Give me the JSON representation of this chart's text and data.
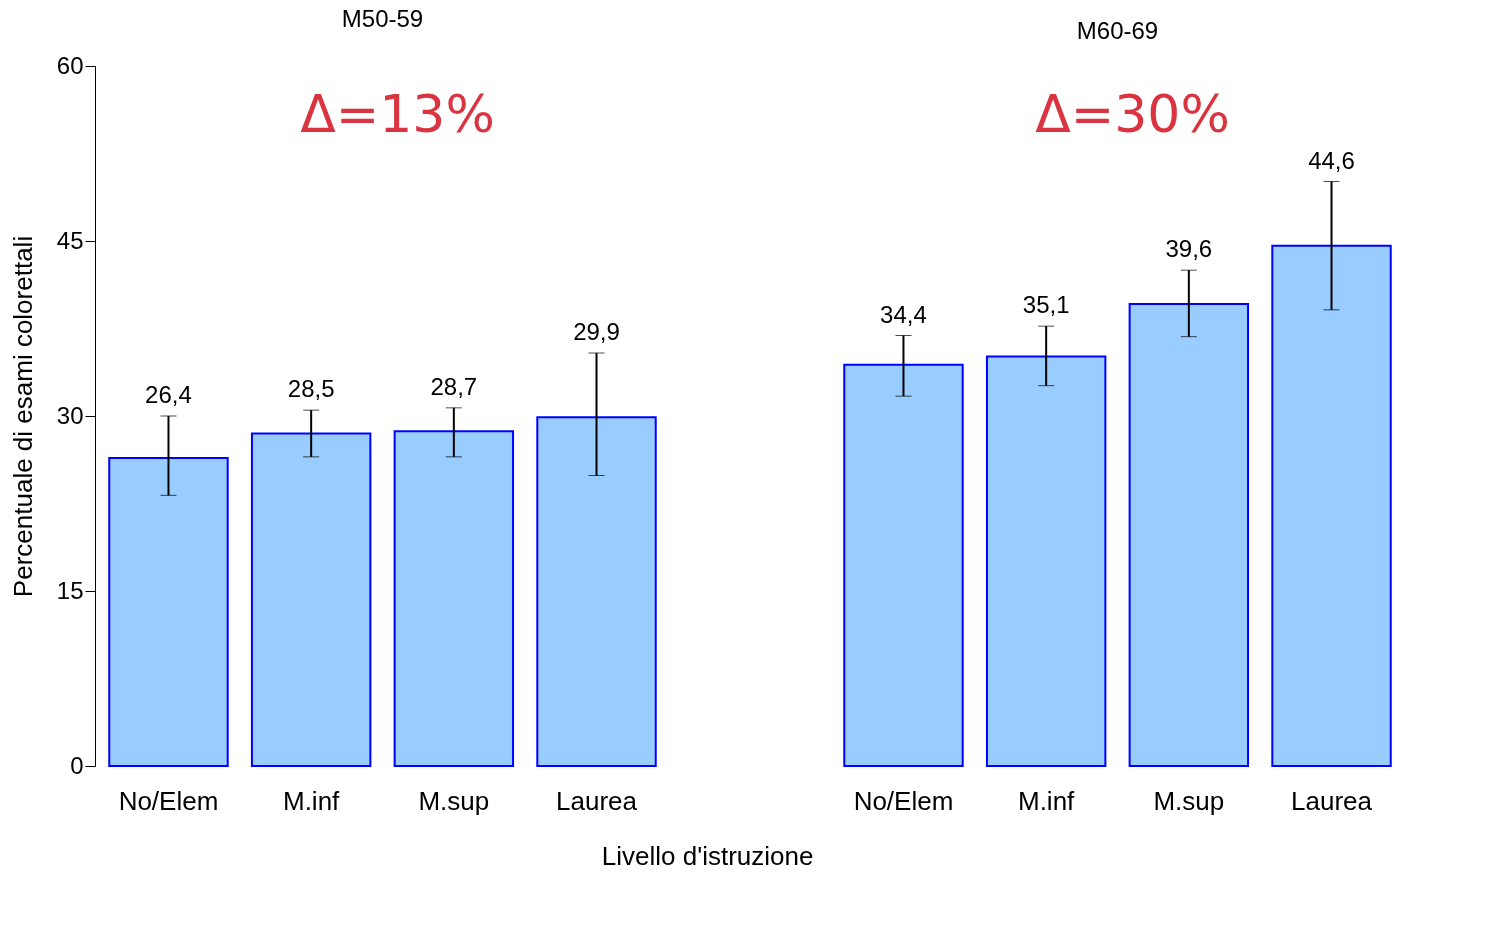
{
  "chart_data": [
    {
      "type": "bar",
      "title": "M50-59",
      "xlabel": "Livello d'istruzione",
      "ylabel": "Percentuale di esami colorettali",
      "categories": [
        "No/Elem",
        "M.inf",
        "M.sup",
        "Laurea"
      ],
      "values": [
        26.4,
        28.5,
        28.7,
        29.9
      ],
      "value_labels": [
        "26,4",
        "28,5",
        "28,7",
        "29,9"
      ],
      "errors": [
        [
          23.2,
          30.0
        ],
        [
          26.5,
          30.5
        ],
        [
          26.5,
          30.7
        ],
        [
          24.9,
          35.4
        ]
      ],
      "color": "#99ccff",
      "ylim": [
        0,
        60
      ],
      "yticks": [
        0,
        15,
        30,
        45,
        60
      ],
      "grid": false,
      "annotations": [
        "Δ=13%"
      ]
    },
    {
      "type": "bar",
      "title": "M60-69",
      "categories": [
        "No/Elem",
        "M.inf",
        "M.sup",
        "Laurea"
      ],
      "values": [
        34.4,
        35.1,
        39.6,
        44.6
      ],
      "value_labels": [
        "34,4",
        "35,1",
        "39,6",
        "44,6"
      ],
      "errors": [
        [
          31.7,
          36.9
        ],
        [
          32.6,
          37.7
        ],
        [
          36.8,
          42.5
        ],
        [
          39.1,
          50.1
        ]
      ],
      "color": "#99ccff",
      "ylim": [
        0,
        60
      ],
      "yticks": [
        0,
        15,
        30,
        45,
        60
      ],
      "grid": false,
      "tick_labels": "x",
      "annotations": [
        "Δ=30%"
      ]
    }
  ]
}
